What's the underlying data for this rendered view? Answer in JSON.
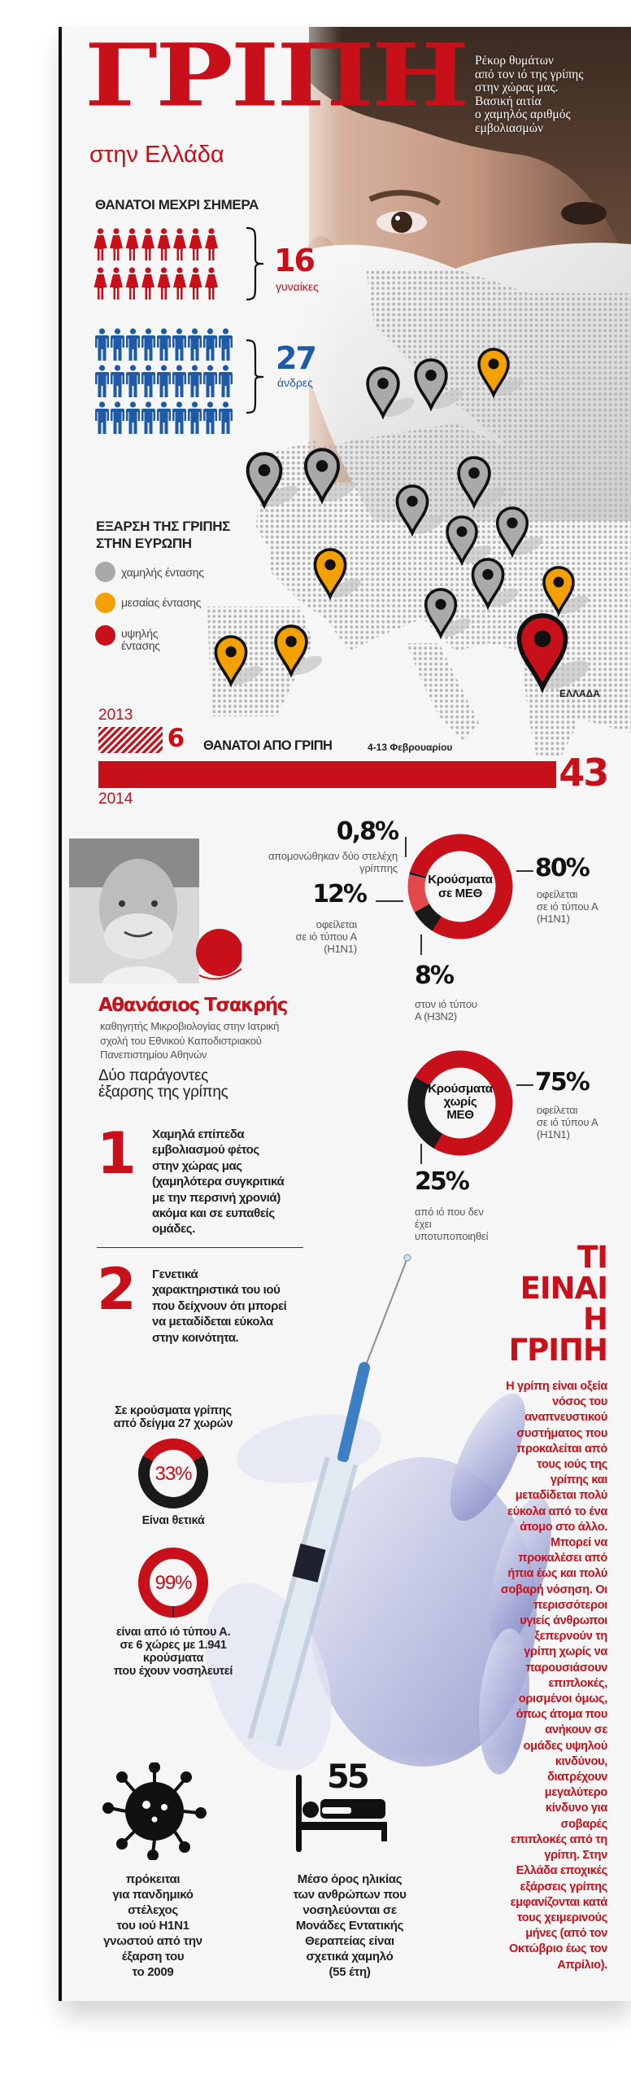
{
  "header": {
    "title": "ΓΡΙΠΗ",
    "subtitle": "στην Ελλάδα",
    "intro": "Ρέκορ θυμάτων\nαπό τον ιό της γρίπης\nστην χώρας μας.\nΒασική αιτία\nο χαμηλός αριθμός\nεμβολιασμών"
  },
  "deaths_to_date": {
    "heading": "ΘΑΝΑΤΟΙ ΜΕΧΡΙ ΣΗΜΕΡΑ",
    "women": {
      "count": 16,
      "count_label": "16",
      "label": "γυναίκες",
      "color": "#c8101a"
    },
    "men": {
      "count": 27,
      "count_label": "27",
      "label": "άνδρες",
      "color": "#1f5aa6"
    }
  },
  "europe": {
    "heading": "ΕΞΑΡΣΗ ΤΗΣ ΓΡΙΠΗΣ\nΣΤΗΝ ΕΥΡΩΠΗ",
    "legend": [
      {
        "level": "low",
        "label": "χαμηλής έντασης",
        "color": "#a9a9a9"
      },
      {
        "level": "medium",
        "label": "μεσαίας έντασης",
        "color": "#f2a100"
      },
      {
        "level": "high",
        "label": "υψηλής\nέντασης",
        "color": "#c8101a"
      }
    ],
    "greece_label": "ΕΛΛΑΔΑ",
    "pin_levels": [
      "low",
      "low",
      "low",
      "low",
      "medium",
      "low",
      "low",
      "low",
      "low",
      "medium",
      "low",
      "low",
      "medium",
      "high",
      "medium",
      "medium"
    ]
  },
  "comparison": {
    "title": "ΘΑΝΑΤΟΙ ΑΠΟ ΓΡΙΠΗ",
    "period": "4-13 Φεβρουαρίου",
    "bars": [
      {
        "year": "2013",
        "value": 6,
        "value_label": "6"
      },
      {
        "year": "2014",
        "value": 43,
        "value_label": "43"
      }
    ]
  },
  "expert": {
    "name": "Αθανάσιος Τσακρής",
    "role": "καθηγητής Μικροβιολογίας στην Ιατρική\nσχολή του Εθνικού Καποδιστριακού\nΠανεπιστημίου Αθηνών",
    "factors_heading": "Δύο παράγοντες\nέξαρσης της γρίπης",
    "factors": [
      {
        "number": "1",
        "text": "Χαμηλά επίπεδα\nεμβολιασμού φέτος\nστην χώρας μας\n(χαμηλότερα συγκριτικά\nμε την περσινή χρονιά)\nακόμα και σε ευπαθείς\nομάδες."
      },
      {
        "number": "2",
        "text": "Γενετικά\nχαρακτηριστικά του ιού\nπου δείχνουν ότι μπορεί\nνα μεταδίδεται εύκολα\nστην κοινότητα."
      }
    ]
  },
  "icu": {
    "center": "Κρούσματα\nσε ΜΕΘ",
    "segments": [
      {
        "value": 8,
        "label": "8%",
        "caption": "στον ιό τύπου\nΑ (Η3Ν2)",
        "color": "#1a1a1a"
      },
      {
        "value": 12,
        "label": "12%",
        "caption": "οφείλεται\nσε ιό τύπου Α\n(Η1Ν1)",
        "color": "#e2474b"
      },
      {
        "value": 0.8,
        "label": "0,8%",
        "caption": "απομονώθηκαν δύο στελέχη\nγρίππης",
        "color": "#1a1a1a"
      },
      {
        "value": 80,
        "label": "80%",
        "caption": "οφείλεται\nσε ιό τύπου Α\n(Η1Ν1)",
        "color": "#c8101a"
      }
    ]
  },
  "non_icu": {
    "center": "Κρούσματα\nχωρίς\nΜΕΘ",
    "segments": [
      {
        "value": 25,
        "label": "25%",
        "caption": "από ιό που δεν\nέχει\nυποτυποποιηθεί",
        "color": "#1a1a1a"
      },
      {
        "value": 75,
        "label": "75%",
        "caption": "οφείλεται\nσε ιό τύπου Α\n(Η1Ν1)",
        "color": "#c8101a"
      }
    ]
  },
  "sample": {
    "heading": "Σε κρούσματα γρίπης\nαπό δείγμα 27 χωρών",
    "positive": {
      "value": 33,
      "label": "33%",
      "caption": "Είναι θετικά"
    },
    "type_a": {
      "value": 99,
      "label": "99%",
      "caption": "είναι από ιό τύπου Α.\nσε 6 χώρες με 1.941\nκρούσματα\nπου έχουν νοσηλευτεί"
    }
  },
  "what_is": {
    "title": "ΤΙ\nΕΙΝΑΙ\nΗ\nΓΡΙΠΗ",
    "text": "Η γρίπη είναι οξεία\nνόσος του\nαναπνευστικού\nσυστήματος που\nπροκαλείται από\nτους ιούς της\nγρίπης και\nμεταδίδεται πολύ\nεύκολα από το ένα\nάτομο στο άλλο.\nΜπορεί να\nπροκαλέσει από\nήπια έως και πολύ\nσοβαρή νόσηση. Οι\nπερισσότεροι\nυγιείς άνθρωποι\nξεπερνούν τη\nγρίπη χωρίς να\nπαρουσιάσουν\nεπιπλοκές,\nορισμένοι όμως,\nόπως άτομα που\nανήκουν σε\nομάδες υψηλού\nκινδύνου,\nδιατρέχουν\nμεγαλύτερο\nκίνδυνο για\nσοβαρές\nεπιπλοκές από τη\nγρίπη. Στην\nΕλλάδα εποχικές\nεξάρσεις γρίπης\nεμφανίζονται κατά\nτους χειμερινούς\nμήνες (από τον\nΟκτώβριο έως τον\nΑπρίλιο)."
  },
  "pandemic": {
    "caption": "πρόκειται\nγια πανδημικό\nστέλεχος\nτου ιού Η1Ν1\nγνωστού από την\nέξαρση του\nτο 2009"
  },
  "age": {
    "value": "55",
    "caption": "Μέσο όρος ηλικίας\nτων ανθρώπων που\nνοσηλεύονται σε\nΜονάδες Εντατικής\nΘεραπείας είναι\nσχετικά χαμηλό\n(55 έτη)"
  },
  "colors": {
    "red": "#c8101a",
    "blue": "#1f5aa6",
    "orange": "#f2a100",
    "gray": "#a9a9a9",
    "light_red": "#e2474b"
  }
}
